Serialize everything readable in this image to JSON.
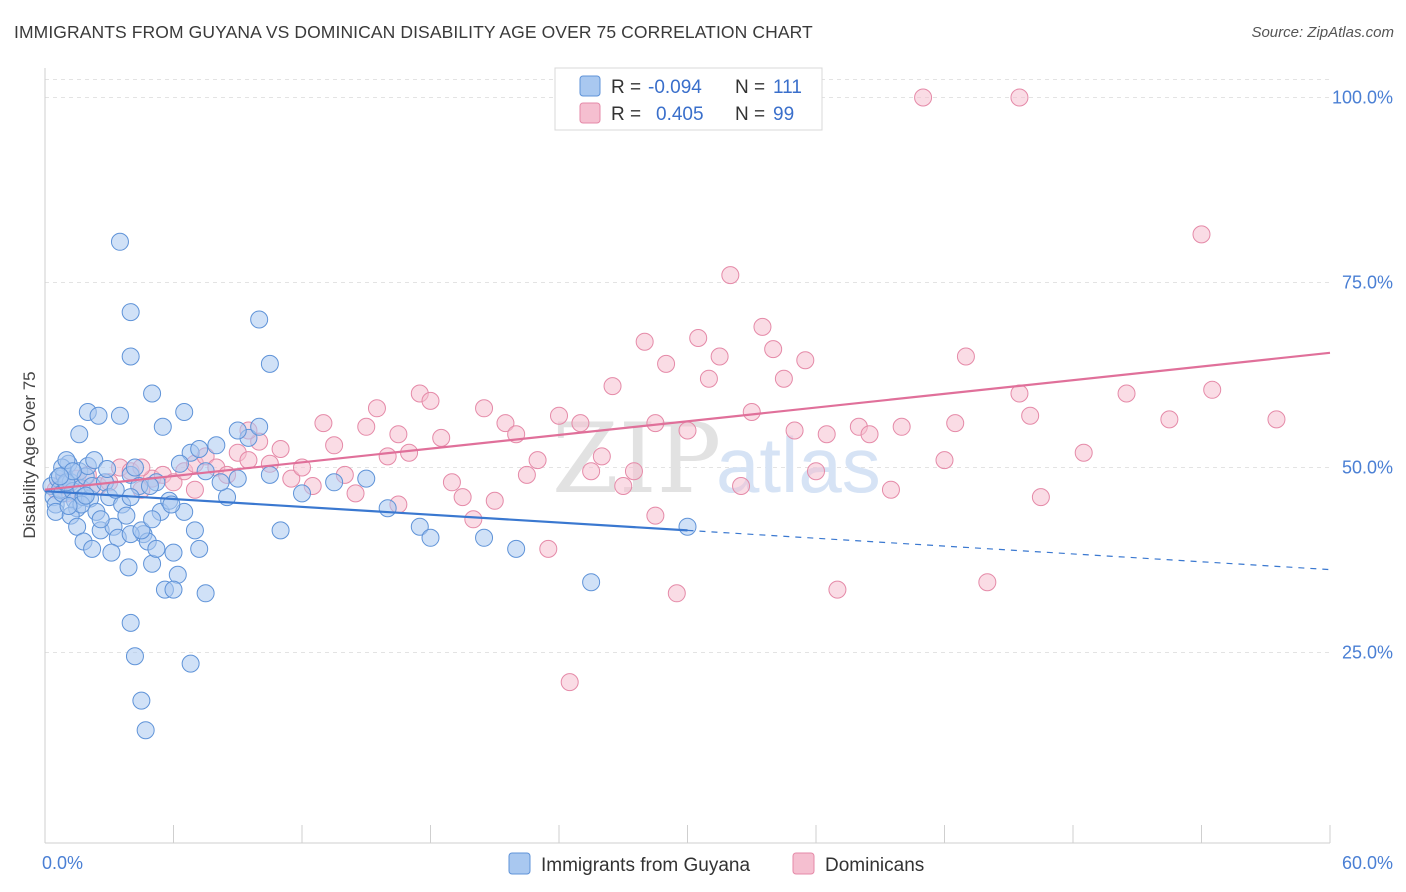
{
  "header": {
    "title": "IMMIGRANTS FROM GUYANA VS DOMINICAN DISABILITY AGE OVER 75 CORRELATION CHART",
    "source": "Source: ZipAtlas.com"
  },
  "watermark": {
    "zip": "ZIP",
    "atlas": "atlas"
  },
  "legend": {
    "r_label": "R =",
    "n_label": "N =",
    "series1": {
      "r": "-0.094",
      "n": "111"
    },
    "series2": {
      "r": "0.405",
      "n": "99"
    }
  },
  "colors": {
    "blue_fill": "#a9c8f0",
    "blue_stroke": "#5f93d8",
    "blue_line": "#3a78d0",
    "pink_fill": "#f5bfd0",
    "pink_stroke": "#e58aa8",
    "pink_line": "#e0709a",
    "axis_text": "#4a7fd4"
  },
  "chart_data": {
    "type": "scatter",
    "title": "IMMIGRANTS FROM GUYANA VS DOMINICAN DISABILITY AGE OVER 75 CORRELATION CHART",
    "xlabel": "",
    "ylabel": "Disability Age Over 75",
    "xlim": [
      0,
      60
    ],
    "ylim": [
      0,
      105
    ],
    "x_tick_labels": [
      "0.0%",
      "60.0%"
    ],
    "y_ticks": [
      25,
      50,
      75,
      100
    ],
    "y_tick_labels": [
      "25.0%",
      "50.0%",
      "75.0%",
      "100.0%"
    ],
    "grid": "horizontal dashed",
    "legend_position": "top-center",
    "series": [
      {
        "name": "Immigrants from Guyana",
        "color": "#a9c8f0",
        "trend": {
          "x": [
            0,
            30
          ],
          "y": [
            46.8,
            41.5
          ],
          "dashed_to": [
            60,
            36.2
          ]
        },
        "points": [
          [
            0.3,
            47.5
          ],
          [
            0.4,
            46.0
          ],
          [
            0.5,
            45.0
          ],
          [
            0.6,
            48.5
          ],
          [
            0.7,
            47.0
          ],
          [
            0.8,
            46.5
          ],
          [
            0.9,
            49.0
          ],
          [
            1.0,
            47.8
          ],
          [
            1.1,
            50.5
          ],
          [
            1.2,
            48.0
          ],
          [
            1.3,
            46.8
          ],
          [
            1.4,
            45.5
          ],
          [
            1.5,
            44.5
          ],
          [
            1.6,
            49.5
          ],
          [
            1.7,
            47.2
          ],
          [
            1.8,
            46.0
          ],
          [
            1.9,
            48.8
          ],
          [
            2.0,
            50.2
          ],
          [
            2.1,
            45.8
          ],
          [
            2.2,
            47.5
          ],
          [
            0.5,
            44.0
          ],
          [
            0.8,
            50.0
          ],
          [
            1.0,
            51.0
          ],
          [
            1.2,
            43.5
          ],
          [
            1.5,
            42.0
          ],
          [
            1.8,
            40.0
          ],
          [
            2.2,
            39.0
          ],
          [
            2.4,
            44.0
          ],
          [
            2.6,
            41.5
          ],
          [
            2.8,
            48.0
          ],
          [
            3.0,
            46.0
          ],
          [
            3.2,
            42.0
          ],
          [
            3.4,
            40.5
          ],
          [
            3.6,
            45.0
          ],
          [
            3.8,
            43.5
          ],
          [
            4.0,
            49.0
          ],
          [
            4.2,
            50.0
          ],
          [
            4.4,
            47.5
          ],
          [
            4.6,
            41.0
          ],
          [
            4.8,
            40.0
          ],
          [
            5.0,
            37.0
          ],
          [
            5.2,
            48.0
          ],
          [
            5.4,
            44.0
          ],
          [
            5.6,
            33.5
          ],
          [
            5.8,
            45.5
          ],
          [
            6.0,
            38.5
          ],
          [
            6.2,
            35.5
          ],
          [
            6.5,
            44.0
          ],
          [
            6.8,
            52.0
          ],
          [
            7.0,
            41.5
          ],
          [
            7.2,
            39.0
          ],
          [
            7.5,
            49.5
          ],
          [
            8.0,
            53.0
          ],
          [
            8.5,
            46.0
          ],
          [
            9.0,
            48.5
          ],
          [
            9.5,
            54.0
          ],
          [
            10.0,
            55.5
          ],
          [
            10.5,
            49.0
          ],
          [
            11.0,
            41.5
          ],
          [
            1.6,
            54.5
          ],
          [
            2.0,
            57.5
          ],
          [
            2.5,
            57.0
          ],
          [
            3.5,
            57.0
          ],
          [
            4.0,
            41.0
          ],
          [
            4.5,
            41.5
          ],
          [
            5.0,
            60.0
          ],
          [
            5.5,
            55.5
          ],
          [
            6.5,
            57.5
          ],
          [
            7.2,
            52.5
          ],
          [
            3.5,
            80.5
          ],
          [
            4.0,
            29.0
          ],
          [
            4.2,
            24.5
          ],
          [
            4.5,
            18.5
          ],
          [
            4.7,
            14.5
          ],
          [
            5.0,
            43.0
          ],
          [
            4.0,
            46.0
          ],
          [
            5.2,
            39.0
          ],
          [
            6.0,
            33.5
          ],
          [
            6.8,
            23.5
          ],
          [
            7.5,
            33.0
          ],
          [
            8.2,
            48.0
          ],
          [
            9.0,
            55.0
          ],
          [
            10.0,
            70.0
          ],
          [
            10.5,
            64.0
          ],
          [
            12.0,
            46.5
          ],
          [
            13.5,
            48.0
          ],
          [
            15.0,
            48.5
          ],
          [
            16.0,
            44.5
          ],
          [
            17.5,
            42.0
          ],
          [
            18.0,
            40.5
          ],
          [
            20.5,
            40.5
          ],
          [
            22.0,
            39.0
          ],
          [
            25.5,
            34.5
          ],
          [
            30.0,
            42.0
          ],
          [
            4.0,
            71.0
          ],
          [
            4.0,
            65.0
          ],
          [
            1.0,
            48.0
          ],
          [
            1.3,
            49.5
          ],
          [
            1.7,
            45.0
          ],
          [
            2.3,
            51.0
          ],
          [
            2.9,
            49.8
          ],
          [
            3.3,
            47.0
          ],
          [
            1.1,
            44.8
          ],
          [
            0.7,
            48.8
          ],
          [
            1.9,
            46.2
          ],
          [
            2.6,
            43.0
          ],
          [
            3.1,
            38.5
          ],
          [
            3.9,
            36.5
          ],
          [
            4.9,
            47.5
          ],
          [
            5.9,
            45.0
          ],
          [
            6.3,
            50.5
          ]
        ]
      },
      {
        "name": "Dominicans",
        "color": "#f5bfd0",
        "trend": {
          "x": [
            0,
            60
          ],
          "y": [
            47.0,
            65.5
          ]
        },
        "points": [
          [
            0.5,
            47.0
          ],
          [
            0.8,
            48.0
          ],
          [
            1.0,
            46.5
          ],
          [
            1.5,
            48.5
          ],
          [
            2.0,
            49.0
          ],
          [
            2.5,
            47.5
          ],
          [
            3.0,
            48.0
          ],
          [
            3.5,
            50.0
          ],
          [
            4.0,
            49.5
          ],
          [
            4.5,
            47.0
          ],
          [
            5.0,
            48.5
          ],
          [
            5.5,
            49.0
          ],
          [
            6.0,
            48.0
          ],
          [
            6.5,
            49.5
          ],
          [
            7.0,
            50.5
          ],
          [
            7.5,
            51.5
          ],
          [
            8.0,
            50.0
          ],
          [
            8.5,
            49.0
          ],
          [
            9.0,
            52.0
          ],
          [
            9.5,
            51.0
          ],
          [
            10.0,
            53.5
          ],
          [
            10.5,
            50.5
          ],
          [
            11.0,
            52.5
          ],
          [
            11.5,
            48.5
          ],
          [
            12.0,
            50.0
          ],
          [
            12.5,
            47.5
          ],
          [
            13.0,
            56.0
          ],
          [
            13.5,
            53.0
          ],
          [
            14.0,
            49.0
          ],
          [
            14.5,
            46.5
          ],
          [
            15.0,
            55.5
          ],
          [
            15.5,
            58.0
          ],
          [
            16.0,
            51.5
          ],
          [
            16.5,
            45.0
          ],
          [
            17.0,
            52.0
          ],
          [
            17.5,
            60.0
          ],
          [
            18.0,
            59.0
          ],
          [
            18.5,
            54.0
          ],
          [
            19.0,
            48.0
          ],
          [
            19.5,
            46.0
          ],
          [
            20.0,
            43.0
          ],
          [
            20.5,
            58.0
          ],
          [
            21.0,
            45.5
          ],
          [
            21.5,
            56.0
          ],
          [
            22.0,
            54.5
          ],
          [
            22.5,
            49.0
          ],
          [
            23.0,
            51.0
          ],
          [
            23.5,
            39.0
          ],
          [
            24.0,
            57.0
          ],
          [
            24.5,
            21.0
          ],
          [
            25.0,
            56.0
          ],
          [
            25.5,
            49.5
          ],
          [
            26.0,
            51.5
          ],
          [
            26.5,
            61.0
          ],
          [
            27.0,
            47.5
          ],
          [
            27.5,
            49.5
          ],
          [
            28.0,
            67.0
          ],
          [
            28.5,
            43.5
          ],
          [
            29.0,
            64.0
          ],
          [
            29.5,
            33.0
          ],
          [
            30.0,
            55.0
          ],
          [
            30.5,
            67.5
          ],
          [
            31.0,
            62.0
          ],
          [
            31.5,
            65.0
          ],
          [
            32.0,
            76.0
          ],
          [
            32.5,
            47.5
          ],
          [
            33.0,
            57.5
          ],
          [
            33.5,
            69.0
          ],
          [
            34.0,
            66.0
          ],
          [
            34.5,
            62.0
          ],
          [
            35.0,
            55.0
          ],
          [
            35.5,
            64.5
          ],
          [
            36.0,
            49.5
          ],
          [
            37.0,
            33.5
          ],
          [
            38.0,
            55.5
          ],
          [
            38.5,
            54.5
          ],
          [
            39.5,
            47.0
          ],
          [
            40.0,
            55.5
          ],
          [
            41.0,
            100.0
          ],
          [
            42.0,
            51.0
          ],
          [
            43.0,
            65.0
          ],
          [
            44.0,
            34.5
          ],
          [
            45.5,
            100.0
          ],
          [
            46.0,
            57.0
          ],
          [
            46.5,
            46.0
          ],
          [
            48.5,
            52.0
          ],
          [
            50.5,
            60.0
          ],
          [
            52.5,
            56.5
          ],
          [
            54.0,
            81.5
          ],
          [
            54.5,
            60.5
          ],
          [
            57.5,
            56.5
          ],
          [
            45.5,
            60.0
          ],
          [
            42.5,
            56.0
          ],
          [
            36.5,
            54.5
          ],
          [
            28.5,
            56.0
          ],
          [
            16.5,
            54.5
          ],
          [
            9.5,
            55.0
          ],
          [
            7.0,
            47.0
          ],
          [
            4.5,
            50.0
          ]
        ]
      }
    ]
  },
  "bottom_legend": {
    "item1": "Immigrants from Guyana",
    "item2": "Dominicans"
  }
}
